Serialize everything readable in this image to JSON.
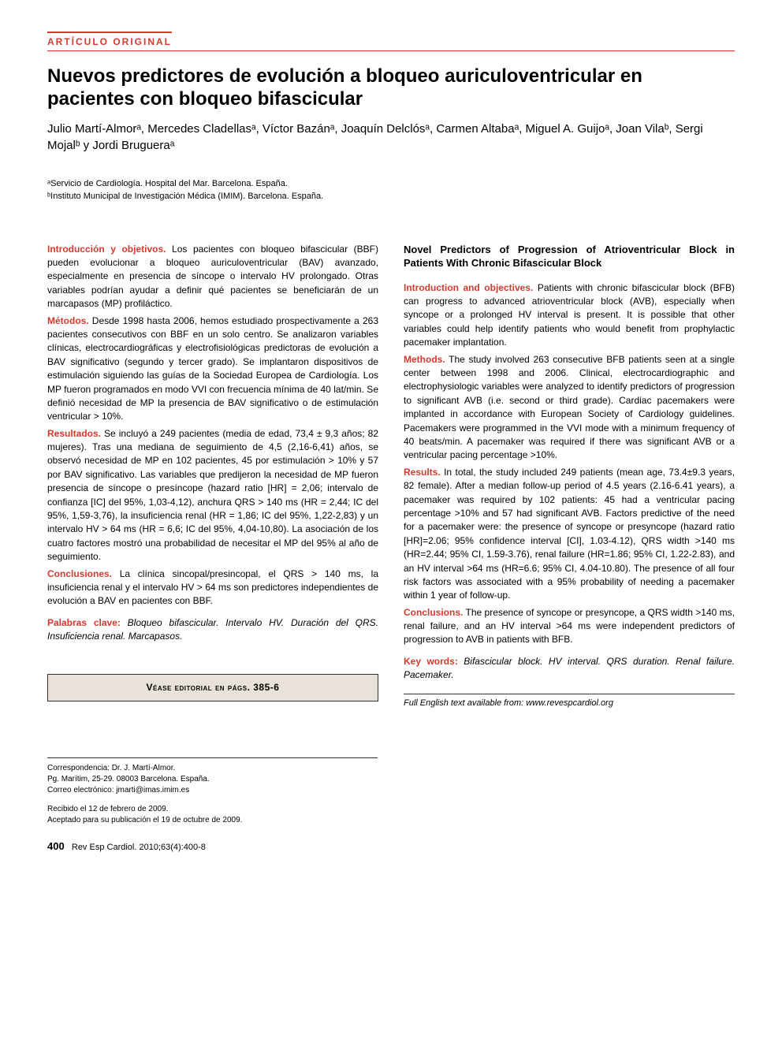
{
  "articleType": "ARTÍCULO ORIGINAL",
  "title": "Nuevos predictores de evolución a bloqueo auriculoventricular en pacientes con bloqueo bifascicular",
  "authors": "Julio Martí-Almorᵃ, Mercedes Cladellasᵃ, Víctor Bazánᵃ, Joaquín Delclósᵃ, Carmen Altabaᵃ, Miguel A. Guijoᵃ, Joan Vilaᵇ, Sergi Mojalᵇ y Jordi Brugueraᵃ",
  "affA": "ᵃServicio de Cardiología. Hospital del Mar. Barcelona. España.",
  "affB": "ᵇInstituto Municipal de Investigación Médica (IMIM). Barcelona. España.",
  "es": {
    "intro_label": "Introducción y objetivos.",
    "intro": " Los pacientes con bloqueo bifascicular (BBF) pueden evolucionar a bloqueo auriculoventricular (BAV) avanzado, especialmente en presencia de síncope o intervalo HV prolongado. Otras variables podrían ayudar a definir qué pacientes se beneficiarán de un marcapasos (MP) profiláctico.",
    "methods_label": "Métodos.",
    "methods": " Desde 1998 hasta 2006, hemos estudiado prospectivamente a 263 pacientes consecutivos con BBF en un solo centro. Se analizaron variables clínicas, electrocardiográficas y electrofisiológicas predictoras de evolución a BAV significativo (segundo y tercer grado). Se implantaron dispositivos de estimulación siguiendo las guías de la Sociedad Europea de Cardiología. Los MP fueron programados en modo VVI con frecuencia mínima de 40 lat/min. Se definió necesidad de MP la presencia de BAV significativo o de estimulación ventricular > 10%.",
    "results_label": "Resultados.",
    "results": " Se incluyó a 249 pacientes (media de edad, 73,4 ± 9,3 años; 82 mujeres). Tras una mediana de seguimiento de 4,5 (2,16-6,41) años, se observó necesidad de MP en 102 pacientes, 45 por estimulación > 10% y 57 por BAV significativo. Las variables que predijeron la necesidad de MP fueron presencia de síncope o presíncope (hazard ratio [HR] = 2,06; intervalo de confianza [IC] del 95%, 1,03-4,12), anchura QRS > 140 ms (HR = 2,44; IC del 95%, 1,59-3,76), la insuficiencia renal (HR = 1,86; IC del 95%, 1,22-2,83) y un intervalo HV > 64 ms (HR = 6,6; IC del 95%, 4,04-10,80). La asociación de los cuatro factores mostró una probabilidad de necesitar el MP del 95% al año de seguimiento.",
    "concl_label": "Conclusiones.",
    "concl": " La clínica sincopal/presincopal, el QRS > 140 ms, la insuficiencia renal y el intervalo HV > 64 ms son predictores independientes de evolución a BAV en pacientes con BBF.",
    "kw_label": "Palabras clave:",
    "kw": " Bloqueo bifascicular. Intervalo HV. Duración del QRS. Insuficiencia renal. Marcapasos."
  },
  "editorial": "Véase editorial en págs. 385-6",
  "en": {
    "title": "Novel Predictors of Progression of Atrioventricular Block in Patients With Chronic Bifascicular Block",
    "intro_label": "Introduction and objectives.",
    "intro": " Patients with chronic bifascicular block (BFB) can progress to advanced atrioventricular block (AVB), especially when syncope or a prolonged HV interval is present. It is possible that other variables could help identify patients who would benefit from prophylactic pacemaker implantation.",
    "methods_label": "Methods.",
    "methods": " The study involved 263 consecutive BFB patients seen at a single center between 1998 and 2006. Clinical, electrocardiographic and electrophysiologic variables were analyzed to identify predictors of progression to significant AVB (i.e. second or third grade). Cardiac pacemakers were implanted in accordance with European Society of Cardiology guidelines. Pacemakers were programmed in the VVI mode with a minimum frequency of 40 beats/min. A pacemaker was required if there was significant AVB or a ventricular pacing percentage >10%.",
    "results_label": "Results.",
    "results": " In total, the study included 249 patients (mean age, 73.4±9.3 years, 82 female). After a median follow-up period of 4.5 years (2.16-6.41 years), a pacemaker was required by 102 patients: 45 had a ventricular pacing percentage >10% and 57 had significant AVB. Factors predictive of the need for a pacemaker were: the presence of syncope or presyncope (hazard ratio [HR]=2.06; 95% confidence interval [CI], 1.03-4.12), QRS width >140 ms (HR=2.44; 95% CI, 1.59-3.76), renal failure (HR=1.86; 95% CI, 1.22-2.83), and an HV interval >64 ms (HR=6.6; 95% CI, 4.04-10.80). The presence of all four risk factors was associated with a 95% probability of needing a pacemaker within 1 year of follow-up.",
    "concl_label": "Conclusions.",
    "concl": " The presence of syncope or presyncope, a QRS width >140 ms, renal failure, and an HV interval >64 ms were independent predictors of progression to AVB in patients with BFB.",
    "kw_label": "Key words:",
    "kw": " Bifascicular block. HV interval. QRS duration. Renal failure. Pacemaker.",
    "link": "Full English text available from: www.revespcardiol.org"
  },
  "corr": {
    "l1": "Correspondencia: Dr. J. Martí-Almor.",
    "l2": "Pg. Marítim, 25-29. 08003 Barcelona. España.",
    "l3": "Correo electrónico: jmarti@imas.imim.es"
  },
  "recv": {
    "l1": "Recibido el 12 de febrero de 2009.",
    "l2": "Aceptado para su publicación el 19 de octubre de 2009."
  },
  "footer": {
    "page": "400",
    "cite": "Rev Esp Cardiol. 2010;63(4):400-8"
  },
  "colors": {
    "accent": "#d43a2e",
    "boxbg": "#e8e2d8",
    "text": "#000000",
    "bg": "#ffffff"
  }
}
